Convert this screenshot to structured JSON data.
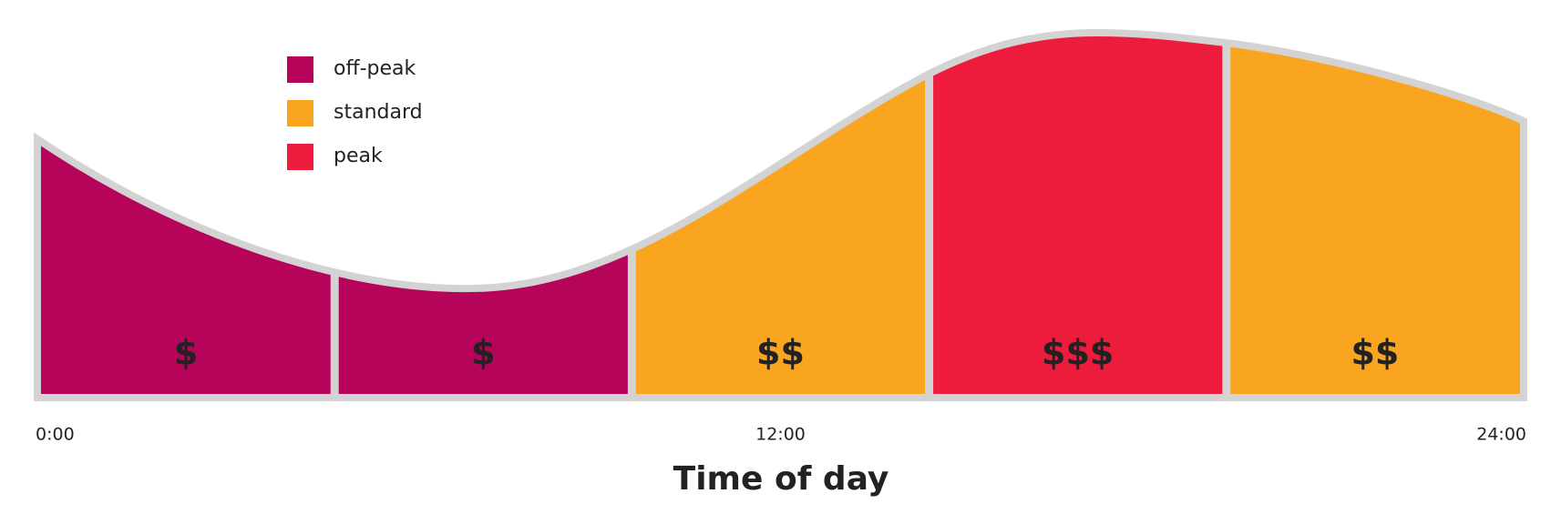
{
  "legend": [
    {
      "label": "off-peak",
      "color": "#b5045a"
    },
    {
      "label": "standard",
      "color": "#f9a51f"
    },
    {
      "label": "peak",
      "color": "#ee1c3c"
    }
  ],
  "segments": [
    {
      "label": "$",
      "color": "#b5045a"
    },
    {
      "label": "$",
      "color": "#b5045a"
    },
    {
      "label": "$$",
      "color": "#f9a51f"
    },
    {
      "label": "$$$",
      "color": "#ee1c3c"
    },
    {
      "label": "$$",
      "color": "#f9a51f"
    }
  ],
  "x_labels": [
    "0:00",
    "12:00",
    "24:00"
  ],
  "x_axis_title": "Time of day"
}
